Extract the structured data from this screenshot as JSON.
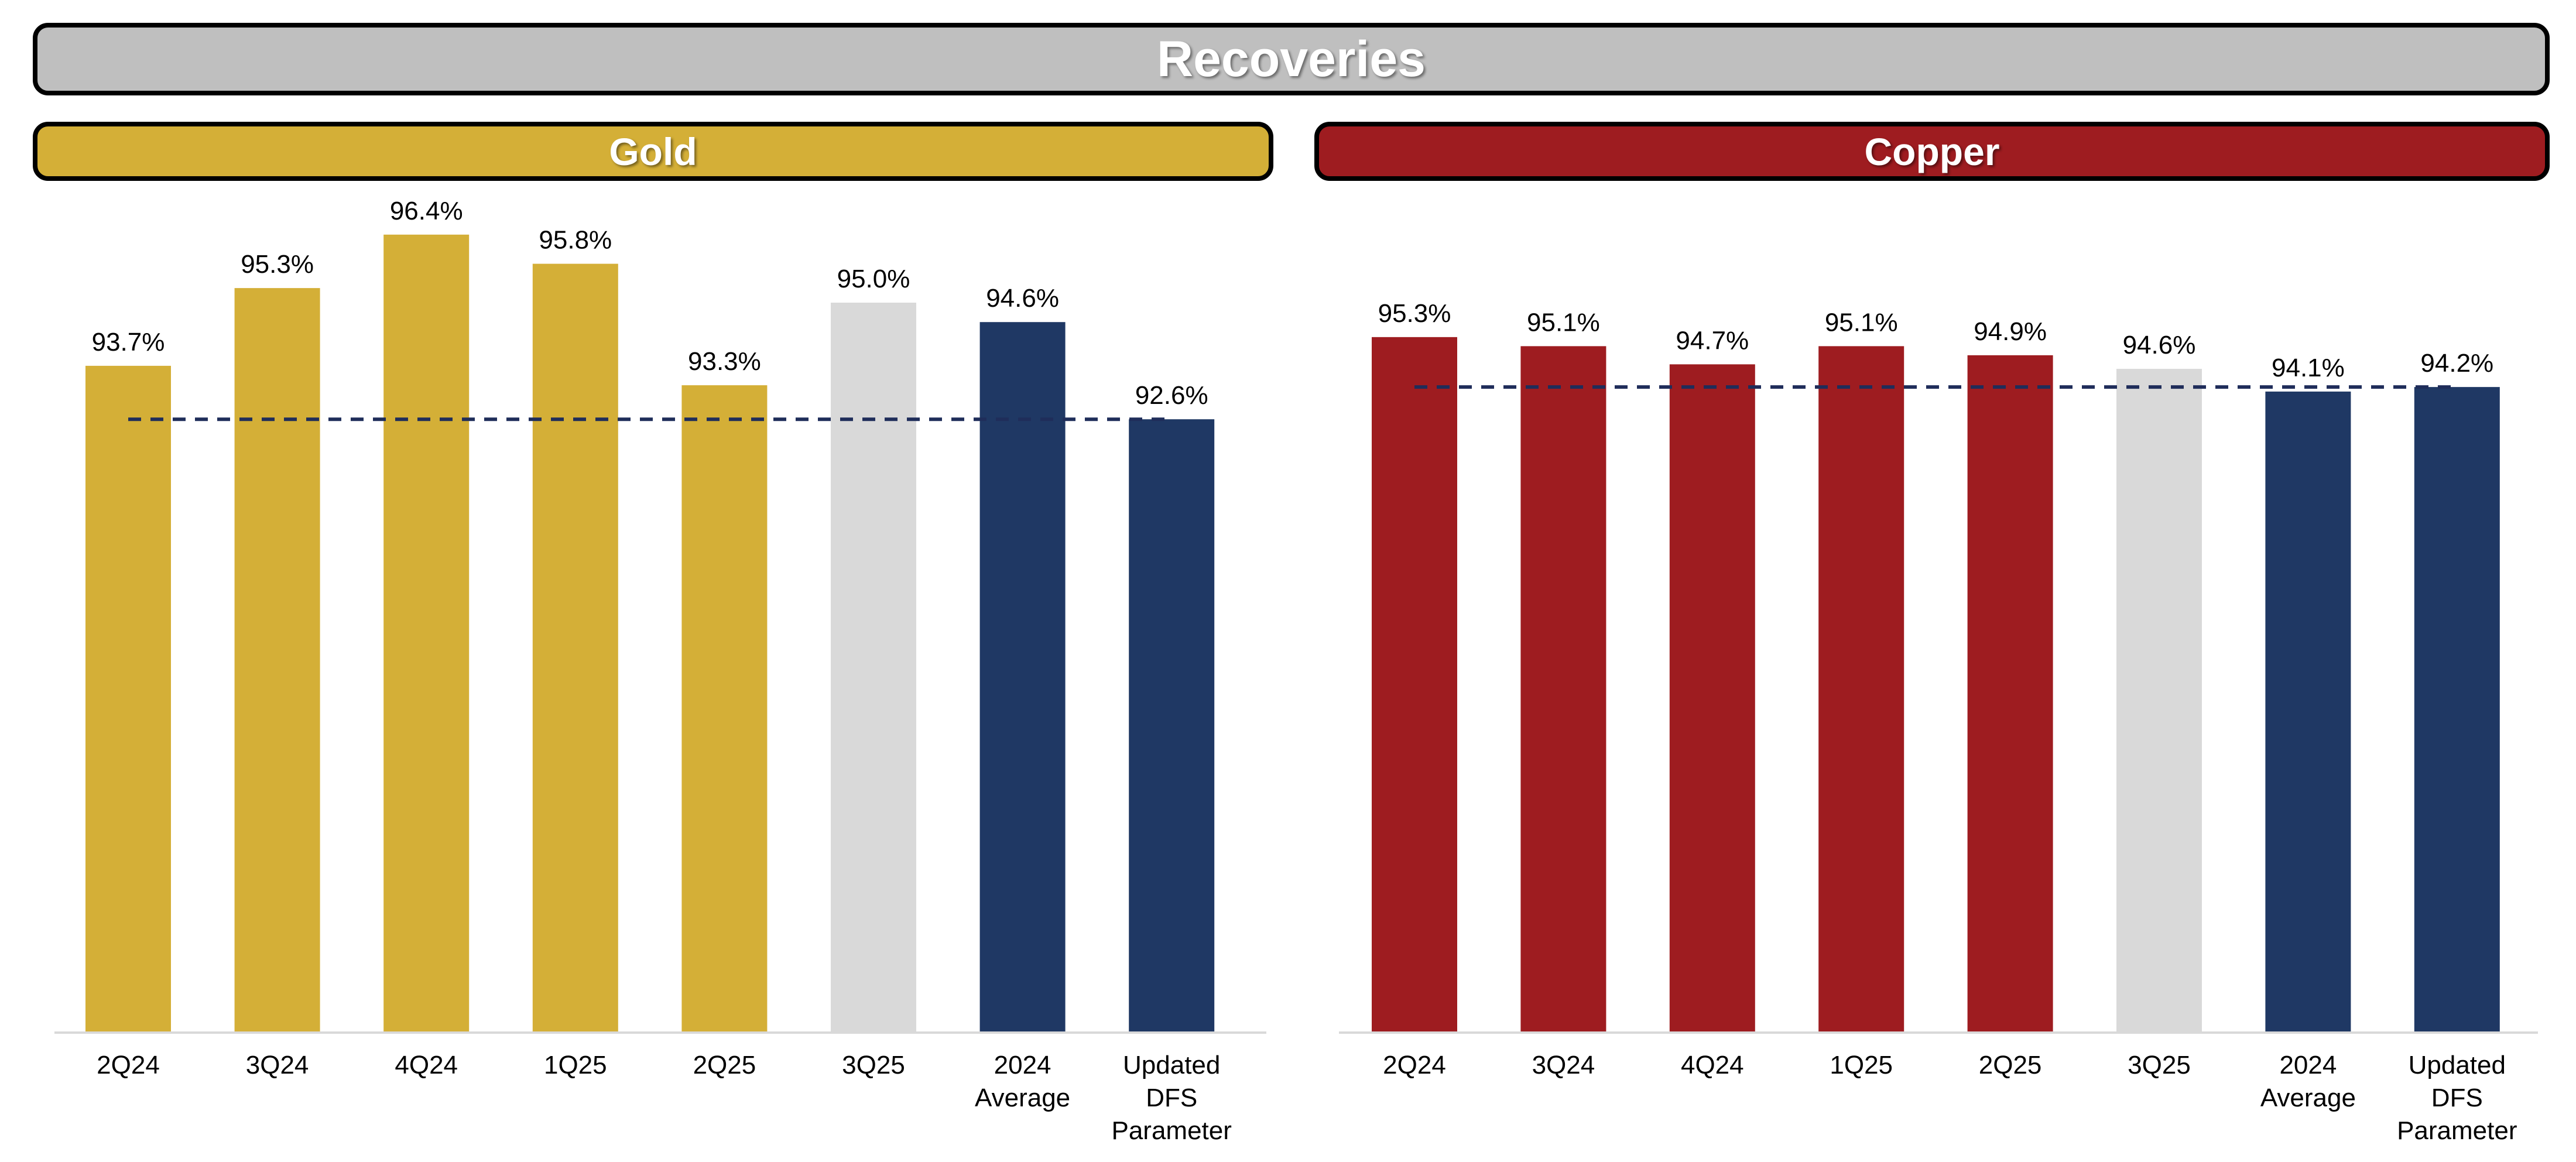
{
  "title": "Recoveries",
  "colors": {
    "gold": "#D4AF37",
    "copper": "#9E1C20",
    "navy": "#1F3864",
    "grey": "#D9D9D9",
    "reference_line": "#1F2D5A",
    "axis": "#D9D9D9"
  },
  "chart_data": [
    {
      "type": "bar",
      "title": "Gold",
      "categories": [
        "2Q24",
        "3Q24",
        "4Q24",
        "1Q25",
        "2Q25",
        "3Q25",
        "2024 Average",
        "Updated DFS Parameter"
      ],
      "values": [
        93.7,
        95.3,
        96.4,
        95.8,
        93.3,
        95.0,
        94.6,
        92.6
      ],
      "labels": [
        "93.7%",
        "95.3%",
        "96.4%",
        "95.8%",
        "93.3%",
        "95.0%",
        "94.6%",
        "92.6%"
      ],
      "bar_colors": [
        "#D4AF37",
        "#D4AF37",
        "#D4AF37",
        "#D4AF37",
        "#D4AF37",
        "#D9D9D9",
        "#1F3864",
        "#1F3864"
      ],
      "reference_line": {
        "value": 92.6,
        "style": "dashed"
      },
      "ylim": [
        80,
        98
      ],
      "grid": false,
      "legend": "none"
    },
    {
      "type": "bar",
      "title": "Copper",
      "categories": [
        "2Q24",
        "3Q24",
        "4Q24",
        "1Q25",
        "2Q25",
        "3Q25",
        "2024 Average",
        "Updated DFS Parameter"
      ],
      "values": [
        95.3,
        95.1,
        94.7,
        95.1,
        94.9,
        94.6,
        94.1,
        94.2
      ],
      "labels": [
        "95.3%",
        "95.1%",
        "94.7%",
        "95.1%",
        "94.9%",
        "94.6%",
        "94.1%",
        "94.2%"
      ],
      "bar_colors": [
        "#9E1C20",
        "#9E1C20",
        "#9E1C20",
        "#9E1C20",
        "#9E1C20",
        "#D9D9D9",
        "#1F3864",
        "#1F3864"
      ],
      "reference_line": {
        "value": 94.2,
        "style": "dashed"
      },
      "ylim": [
        80,
        99
      ],
      "grid": false,
      "legend": "none"
    }
  ]
}
